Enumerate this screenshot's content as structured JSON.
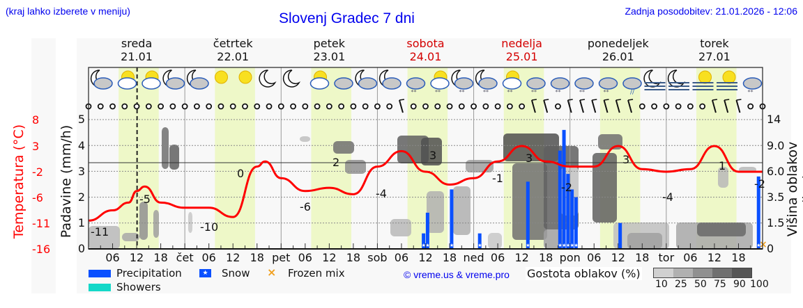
{
  "header": {
    "region_hint": "(kraj lahko izberete v meniju)",
    "title": "Slovenj Gradec 7 dni",
    "last_update": "Zadnja posodobitev: 21.01.2026 - 12:06"
  },
  "days": [
    {
      "name": "sreda",
      "date": "21.01",
      "weekend": false
    },
    {
      "name": "četrtek",
      "date": "22.01",
      "weekend": false
    },
    {
      "name": "petek",
      "date": "23.01",
      "weekend": false
    },
    {
      "name": "sobota",
      "date": "24.01",
      "weekend": true
    },
    {
      "name": "nedelja",
      "date": "25.01",
      "weekend": true
    },
    {
      "name": "ponedeljek",
      "date": "26.01",
      "weekend": false
    },
    {
      "name": "torek",
      "date": "27.01",
      "weekend": false
    }
  ],
  "axes": {
    "left_temp_label": "Temperatura (°C)",
    "left_temp_ticks": [
      "8",
      "3",
      "-2",
      "-6",
      "-11",
      "-16"
    ],
    "left_precip_label": "Padavine (mm/h)",
    "left_precip_ticks": [
      "5",
      "4",
      "3",
      "2",
      "1",
      "0"
    ],
    "right_label": "Višina oblakov (km)",
    "right_ticks": [
      "14",
      "9.0",
      "6.0",
      "3.5",
      "1.5",
      "0"
    ],
    "x_ticks": [
      "06",
      "12",
      "18",
      "čet",
      "06",
      "12",
      "18",
      "pet",
      "06",
      "12",
      "18",
      "sob",
      "06",
      "12",
      "18",
      "ned",
      "06",
      "12",
      "18",
      "pon",
      "06",
      "12",
      "18",
      "tor",
      "06",
      "12",
      "18"
    ]
  },
  "legend": {
    "precipitation": "Precipitation",
    "snow": "Snow",
    "frozen_mix": "Frozen mix",
    "showers": "Showers",
    "copyright": "© vreme.us & vreme.pro",
    "cloud_density_label": "Gostota oblakov (%)",
    "cloud_density_ticks": [
      "10",
      "25",
      "50",
      "75",
      "90",
      "100"
    ]
  },
  "colors": {
    "precipitation": "#0a50ff",
    "showers": "#14d8c8",
    "frozen_mix": "#f0a020",
    "temperature": "#ff0000",
    "weekend": "#d40000",
    "daylight": "#eef8c8",
    "link": "#0000ee"
  },
  "chart_data": {
    "type": "line",
    "title": "Slovenj Gradec 7 dni",
    "xlabel": "",
    "ylabel": "Padavine (mm/h)",
    "ylim": [
      0,
      5
    ],
    "grid": true,
    "x_start": "21.01 00:00",
    "x_hours": 168,
    "current_time_marker": "21.01 12:06",
    "temperature_series": {
      "name": "Temperatura (°C)",
      "points_hour_temp": [
        [
          0,
          -10.5
        ],
        [
          6,
          -8.5
        ],
        [
          10,
          -7.0
        ],
        [
          12,
          -5.0
        ],
        [
          14,
          -4.3
        ],
        [
          18,
          -7.0
        ],
        [
          24,
          -8.0
        ],
        [
          30,
          -8.0
        ],
        [
          36,
          -9.8
        ],
        [
          42,
          -1.0
        ],
        [
          44,
          0
        ],
        [
          48,
          -3
        ],
        [
          54,
          -5.0
        ],
        [
          60,
          -4.5
        ],
        [
          66,
          -5.5
        ],
        [
          72,
          -1
        ],
        [
          78,
          2
        ],
        [
          84,
          -2
        ],
        [
          90,
          -4
        ],
        [
          96,
          -3
        ],
        [
          102,
          0
        ],
        [
          108,
          3
        ],
        [
          114,
          0
        ],
        [
          120,
          -1
        ],
        [
          126,
          -1
        ],
        [
          132,
          3
        ],
        [
          138,
          -1.5
        ],
        [
          144,
          -2
        ],
        [
          150,
          -1.5
        ],
        [
          156,
          3
        ],
        [
          162,
          -2
        ],
        [
          168,
          -2
        ]
      ],
      "labels": [
        {
          "hour": 1,
          "value": "-11"
        },
        {
          "hour": 14,
          "value": "-5"
        },
        {
          "hour": 30,
          "value": "-10"
        },
        {
          "hour": 38,
          "value": "0"
        },
        {
          "hour": 55,
          "value": "-6"
        },
        {
          "hour": 62,
          "value": "2"
        },
        {
          "hour": 73,
          "value": "-4"
        },
        {
          "hour": 86,
          "value": "3"
        },
        {
          "hour": 101,
          "value": "-1"
        },
        {
          "hour": 111,
          "value": "3"
        },
        {
          "hour": 119,
          "value": "-2"
        },
        {
          "hour": 133,
          "value": "3"
        },
        {
          "hour": 143,
          "value": "-4"
        },
        {
          "hour": 158,
          "value": "1"
        },
        {
          "hour": 167,
          "value": "-2"
        }
      ]
    },
    "precipitation_bars": [
      {
        "hour": 83.5,
        "mm": 0.6,
        "type": "snow"
      },
      {
        "hour": 84.5,
        "mm": 1.4,
        "type": "snow"
      },
      {
        "hour": 90.5,
        "mm": 2.3,
        "type": "snow"
      },
      {
        "hour": 97.5,
        "mm": 0.6,
        "type": "snow"
      },
      {
        "hour": 109.5,
        "mm": 2.6,
        "type": "snow"
      },
      {
        "hour": 117.5,
        "mm": 3.8,
        "type": "snow"
      },
      {
        "hour": 118.5,
        "mm": 4.6,
        "type": "snow"
      },
      {
        "hour": 119.5,
        "mm": 2.9,
        "type": "snow"
      },
      {
        "hour": 120.5,
        "mm": 2.3,
        "type": "snow"
      },
      {
        "hour": 121.5,
        "mm": 2.0,
        "type": "snow"
      },
      {
        "hour": 132.5,
        "mm": 1.0,
        "type": "precipitation"
      },
      {
        "hour": 167,
        "mm": 2.8,
        "type": "snow"
      },
      {
        "hour": 168,
        "mm": 0,
        "type": "frozen_mix"
      }
    ],
    "cloud_density_levels": [
      10,
      25,
      50,
      75,
      90,
      100
    ]
  }
}
